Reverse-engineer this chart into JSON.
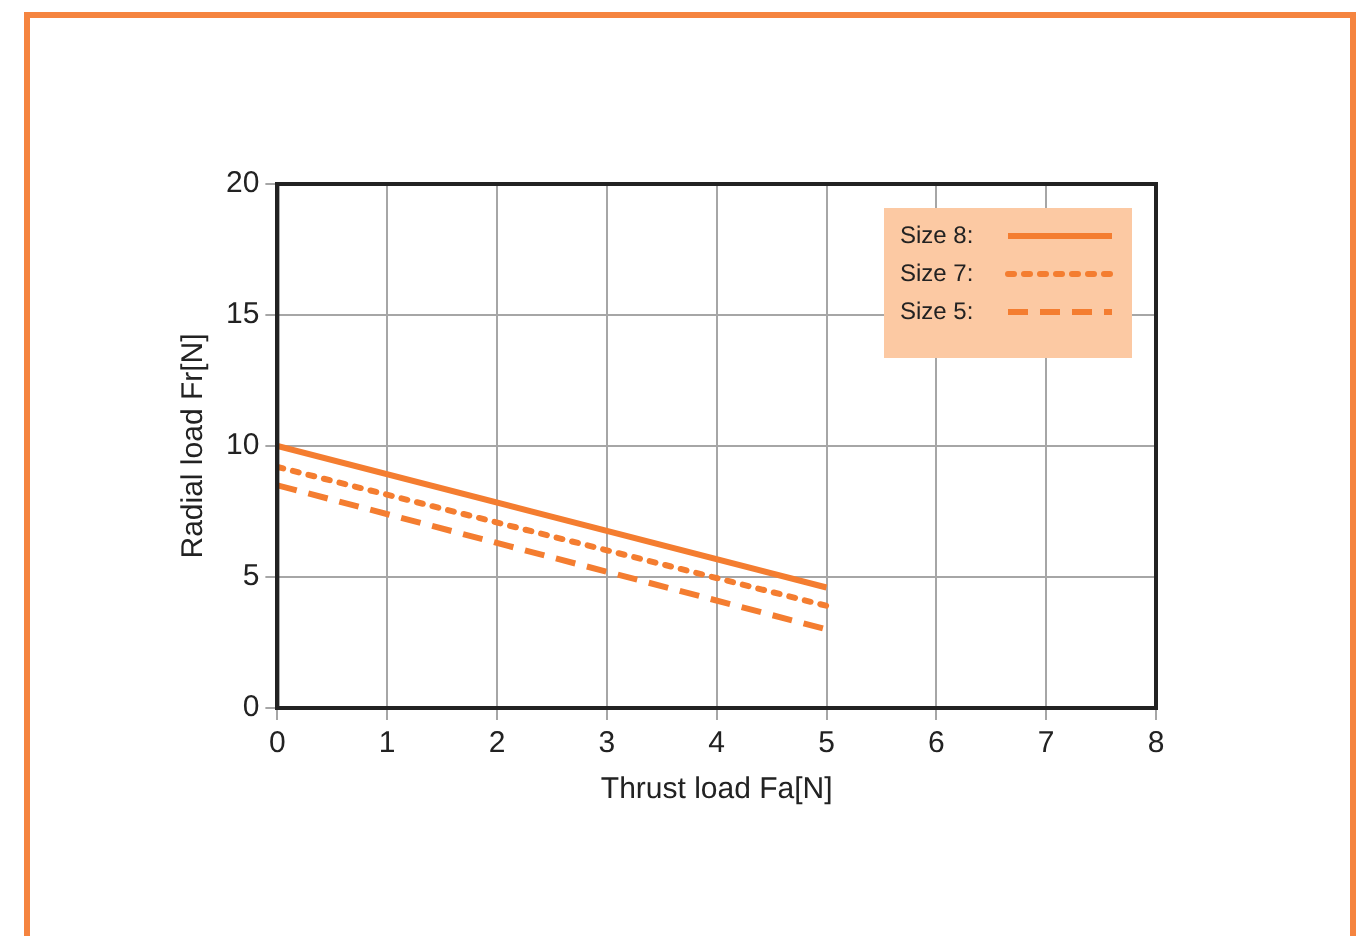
{
  "chart_data": {
    "type": "line",
    "xlabel": "Thrust load Fa[N]",
    "ylabel": "Radial load Fr[N]",
    "xlim": [
      0,
      8
    ],
    "xticks": [
      0,
      1,
      2,
      3,
      4,
      5,
      6,
      7,
      8
    ],
    "ylim": [
      0,
      20
    ],
    "yticks": [
      0,
      5,
      10,
      15,
      20
    ],
    "grid": true,
    "legend": "top right",
    "marker": "none",
    "x": [
      0,
      5
    ],
    "series": [
      {
        "name": "Size 8:",
        "color": "#f47d30",
        "values": [
          10,
          4.6
        ],
        "line_style": "solid"
      },
      {
        "name": "Size 7:",
        "color": "#f47d30",
        "values": [
          9.2,
          3.9
        ],
        "line_style": "dotted"
      },
      {
        "name": "Size 5:",
        "color": "#f47d30",
        "values": [
          8.5,
          3.0
        ],
        "line_style": "dashed"
      }
    ]
  }
}
